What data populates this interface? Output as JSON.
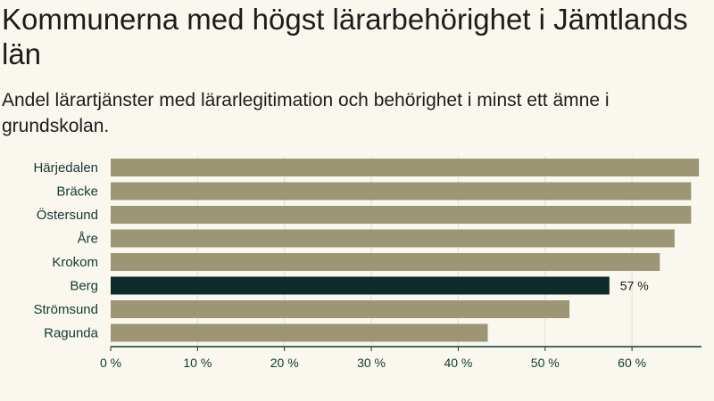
{
  "chart_data": {
    "type": "bar",
    "orientation": "horizontal",
    "title": "Kommunerna med högst lärarbehörighet i Jämtlands län",
    "subtitle": "Andel lärartjänster med lärarlegitimation och behörighet i minst ett ämne i grundskolan.",
    "categories": [
      "Härjedalen",
      "Bräcke",
      "Östersund",
      "Åre",
      "Krokom",
      "Berg",
      "Strömsund",
      "Ragunda"
    ],
    "values": [
      67.7,
      66.8,
      66.8,
      64.9,
      63.2,
      57.4,
      52.8,
      43.4
    ],
    "highlight": "Berg",
    "highlight_label": "57 %",
    "xlim": [
      0,
      68
    ],
    "xticks": [
      0,
      10,
      20,
      30,
      40,
      50,
      60
    ],
    "xtick_labels": [
      "0 %",
      "10 %",
      "20 %",
      "30 %",
      "40 %",
      "50 %",
      "60 %"
    ],
    "grid": true,
    "colors": {
      "bar": "#9c9674",
      "highlight": "#0d2b29",
      "grid": "#e2dfd2",
      "axis": "#123a33"
    }
  }
}
